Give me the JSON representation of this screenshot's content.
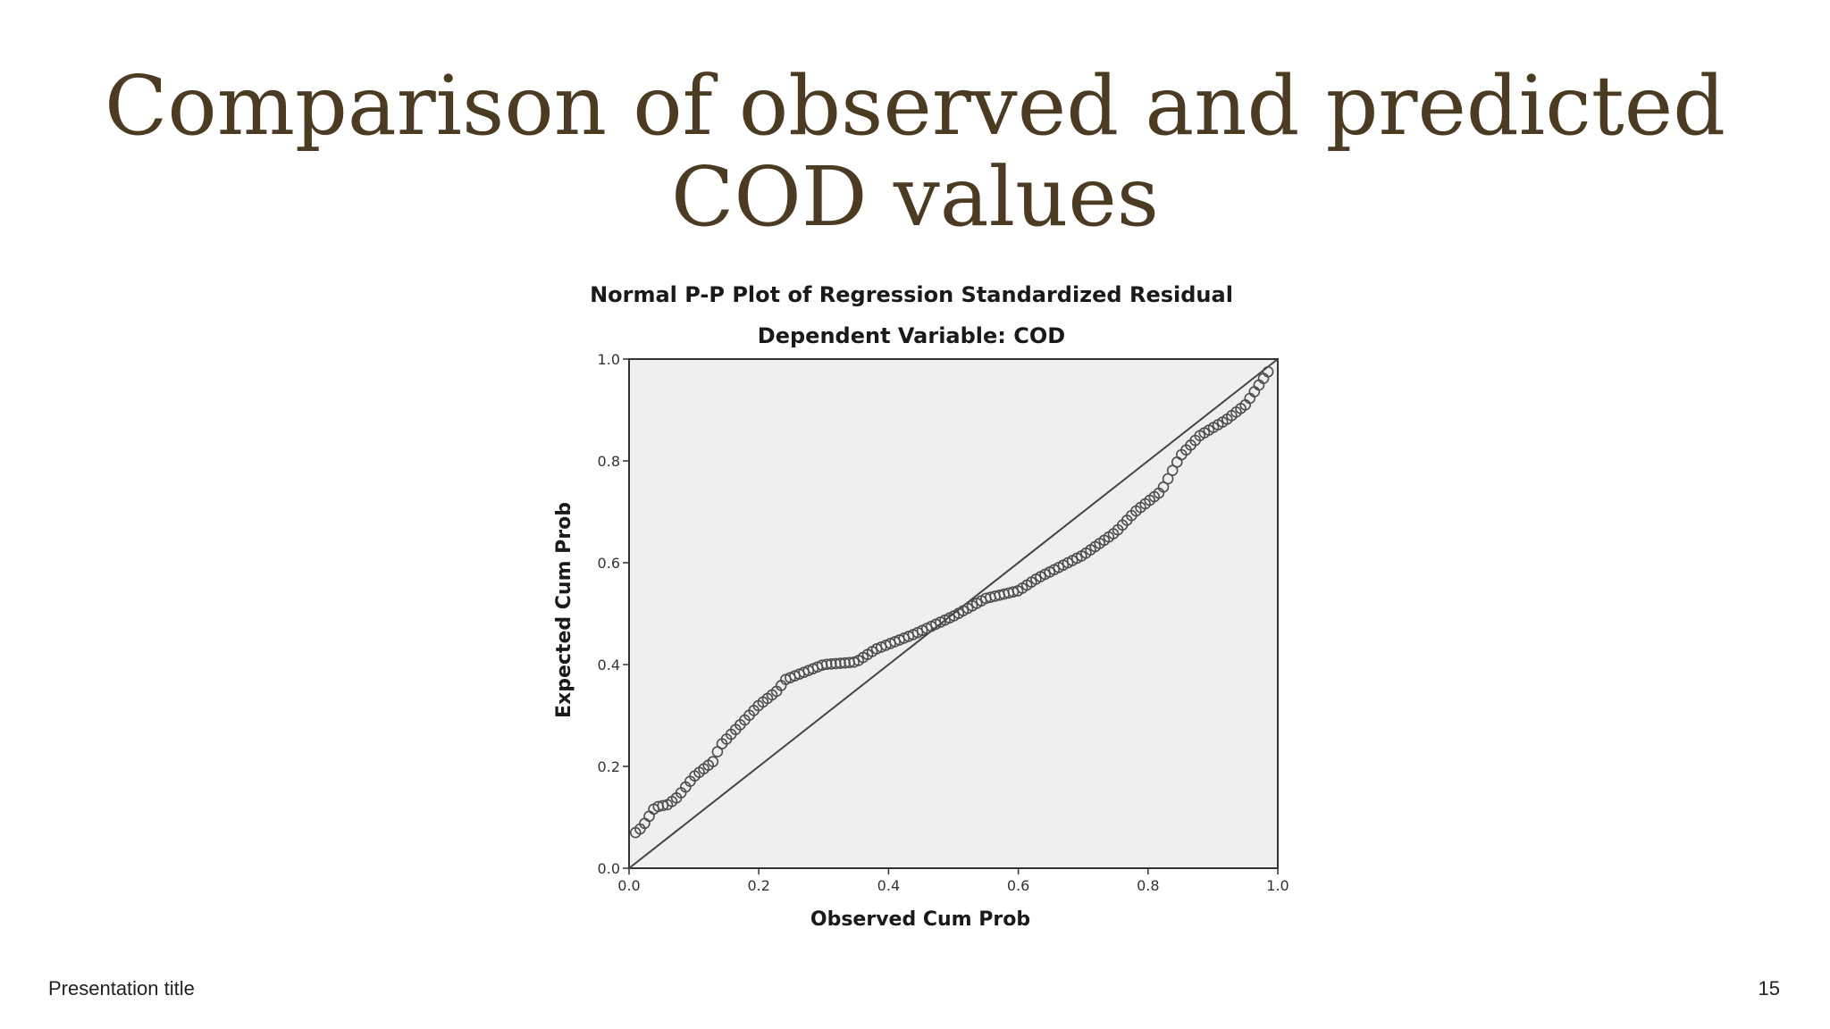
{
  "slide": {
    "title_line1": "Comparison of observed and predicted",
    "title_line2": "COD values",
    "footer_text": "Presentation title",
    "page_number": "15"
  },
  "colors": {
    "title": "#4a3b22",
    "plot_background": "#efefef",
    "axis": "#333333",
    "marker": "#4d4d4d"
  },
  "chart_data": {
    "type": "scatter",
    "title": "Normal P-P Plot of Regression Standardized Residual",
    "subtitle": "Dependent Variable: COD",
    "xlabel": "Observed Cum Prob",
    "ylabel": "Expected Cum Prob",
    "xlim": [
      0,
      1
    ],
    "ylim": [
      0,
      1
    ],
    "xticks": [
      "0.0",
      "0.2",
      "0.4",
      "0.6",
      "0.8",
      "1.0"
    ],
    "yticks": [
      "0.0",
      "0.2",
      "0.4",
      "0.6",
      "0.8",
      "1.0"
    ],
    "grid": false,
    "reference_line": {
      "x": [
        0,
        1
      ],
      "y": [
        0,
        1
      ]
    },
    "anchors": [
      [
        0.01,
        0.07
      ],
      [
        0.02,
        0.08
      ],
      [
        0.03,
        0.1
      ],
      [
        0.04,
        0.12
      ],
      [
        0.06,
        0.125
      ],
      [
        0.075,
        0.14
      ],
      [
        0.1,
        0.18
      ],
      [
        0.13,
        0.21
      ],
      [
        0.14,
        0.24
      ],
      [
        0.17,
        0.28
      ],
      [
        0.2,
        0.32
      ],
      [
        0.23,
        0.35
      ],
      [
        0.24,
        0.37
      ],
      [
        0.3,
        0.4
      ],
      [
        0.35,
        0.405
      ],
      [
        0.38,
        0.43
      ],
      [
        0.44,
        0.46
      ],
      [
        0.5,
        0.495
      ],
      [
        0.55,
        0.53
      ],
      [
        0.6,
        0.545
      ],
      [
        0.63,
        0.57
      ],
      [
        0.7,
        0.615
      ],
      [
        0.75,
        0.66
      ],
      [
        0.78,
        0.7
      ],
      [
        0.82,
        0.74
      ],
      [
        0.85,
        0.81
      ],
      [
        0.88,
        0.85
      ],
      [
        0.92,
        0.88
      ],
      [
        0.95,
        0.91
      ],
      [
        0.985,
        0.975
      ]
    ],
    "n_points": 140
  }
}
